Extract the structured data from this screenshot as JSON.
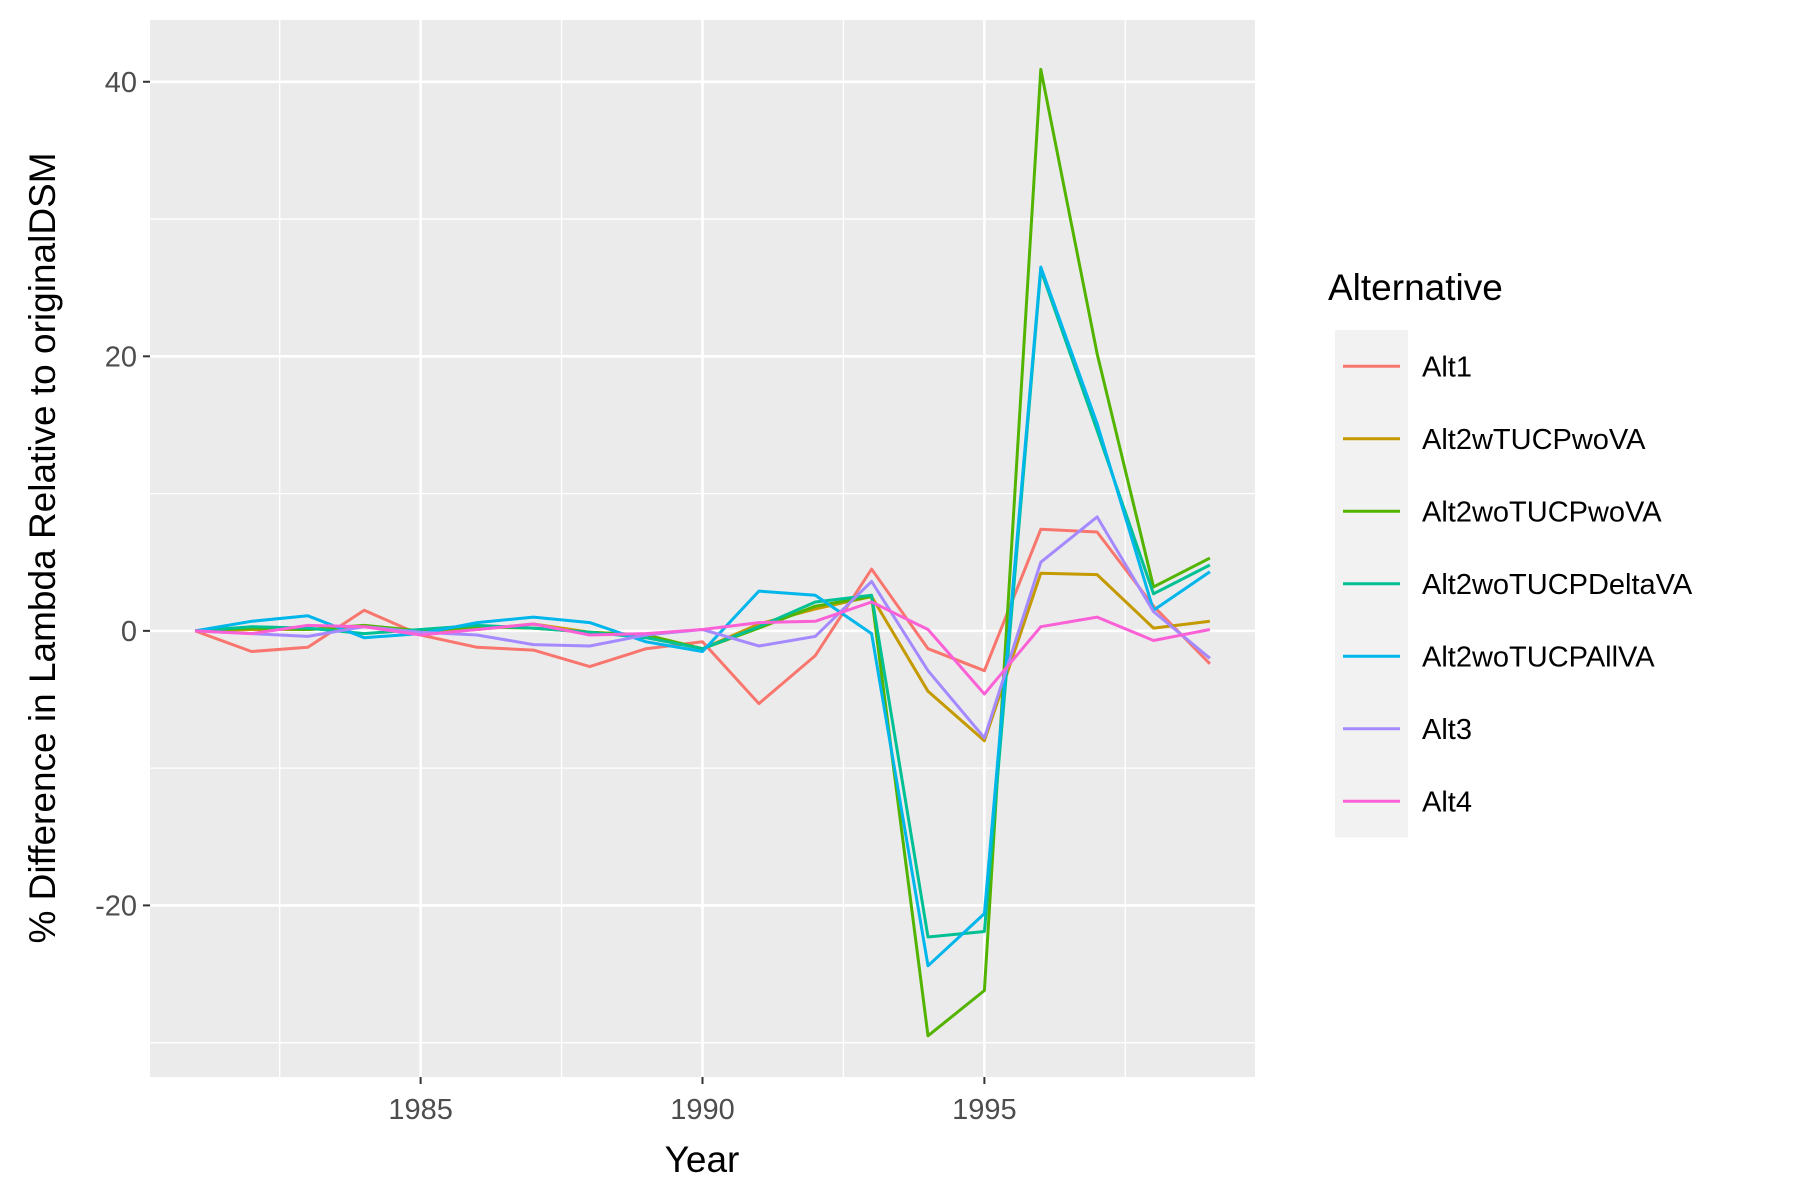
{
  "chart_data": {
    "type": "line",
    "title": "",
    "xlabel": "Year",
    "ylabel": "% Difference in Lambda Relative to originalDSM",
    "xlim": [
      1980.2,
      1999.8
    ],
    "ylim": [
      -32.5,
      44.5
    ],
    "x_ticks": [
      1985,
      1990,
      1995
    ],
    "x_tick_labels": [
      "1985",
      "1990",
      "1995"
    ],
    "y_ticks": [
      -20,
      0,
      20,
      40
    ],
    "y_tick_labels": [
      "-20",
      "0",
      "20",
      "40"
    ],
    "grid": true,
    "legend_position": "right",
    "legend_title": "Alternative",
    "x": [
      1981,
      1982,
      1983,
      1984,
      1985,
      1986,
      1987,
      1988,
      1989,
      1990,
      1991,
      1992,
      1993,
      1994,
      1995,
      1996,
      1997,
      1998,
      1999
    ],
    "series": [
      {
        "name": "Alt1",
        "color": "#F8766D",
        "values": [
          0,
          -1.5,
          -1.2,
          1.5,
          -0.3,
          -1.2,
          -1.4,
          -2.6,
          -1.3,
          -0.8,
          -5.3,
          -1.8,
          4.5,
          -1.3,
          -2.9,
          7.4,
          7.2,
          1.8,
          -2.4
        ]
      },
      {
        "name": "Alt2wTUCPwoVA",
        "color": "#C49A00",
        "values": [
          0,
          0.1,
          0.1,
          0.3,
          -0.1,
          0.1,
          0.5,
          -0.1,
          -0.3,
          -1.3,
          0.5,
          1.6,
          2.5,
          -4.4,
          -8.0,
          4.2,
          4.1,
          0.2,
          0.7
        ]
      },
      {
        "name": "Alt2woTUCPwoVA",
        "color": "#53B400",
        "values": [
          0,
          0.2,
          0.1,
          0.4,
          0.0,
          0.3,
          0.2,
          -0.1,
          -0.3,
          -1.3,
          0.2,
          1.8,
          2.5,
          -29.5,
          -26.2,
          40.9,
          20.2,
          3.2,
          5.3
        ]
      },
      {
        "name": "Alt2woTUCPDeltaVA",
        "color": "#00C094",
        "values": [
          0,
          0.3,
          0.2,
          -0.2,
          0.1,
          0.4,
          0.2,
          -0.1,
          -0.5,
          -1.3,
          0.3,
          2.1,
          2.6,
          -22.3,
          -21.9,
          26.3,
          14.6,
          2.7,
          4.8
        ]
      },
      {
        "name": "Alt2woTUCPAllVA",
        "color": "#00B6EB",
        "values": [
          0,
          0.7,
          1.1,
          -0.5,
          -0.2,
          0.6,
          1.0,
          0.6,
          -0.8,
          -1.5,
          2.9,
          2.6,
          -0.2,
          -24.4,
          -20.6,
          26.5,
          15.1,
          1.5,
          4.3
        ]
      },
      {
        "name": "Alt3",
        "color": "#A58AFF",
        "values": [
          0,
          -0.2,
          -0.4,
          0.3,
          -0.1,
          -0.3,
          -1.0,
          -1.1,
          -0.3,
          0.1,
          -1.1,
          -0.4,
          3.6,
          -2.9,
          -7.8,
          5.0,
          8.3,
          1.4,
          -2.0
        ]
      },
      {
        "name": "Alt4",
        "color": "#FB61D7",
        "values": [
          0,
          -0.2,
          0.4,
          0.3,
          -0.3,
          0.1,
          0.5,
          -0.3,
          -0.2,
          0.1,
          0.6,
          0.7,
          2.1,
          0.1,
          -4.6,
          0.3,
          1.0,
          -0.7,
          0.1
        ]
      }
    ]
  }
}
